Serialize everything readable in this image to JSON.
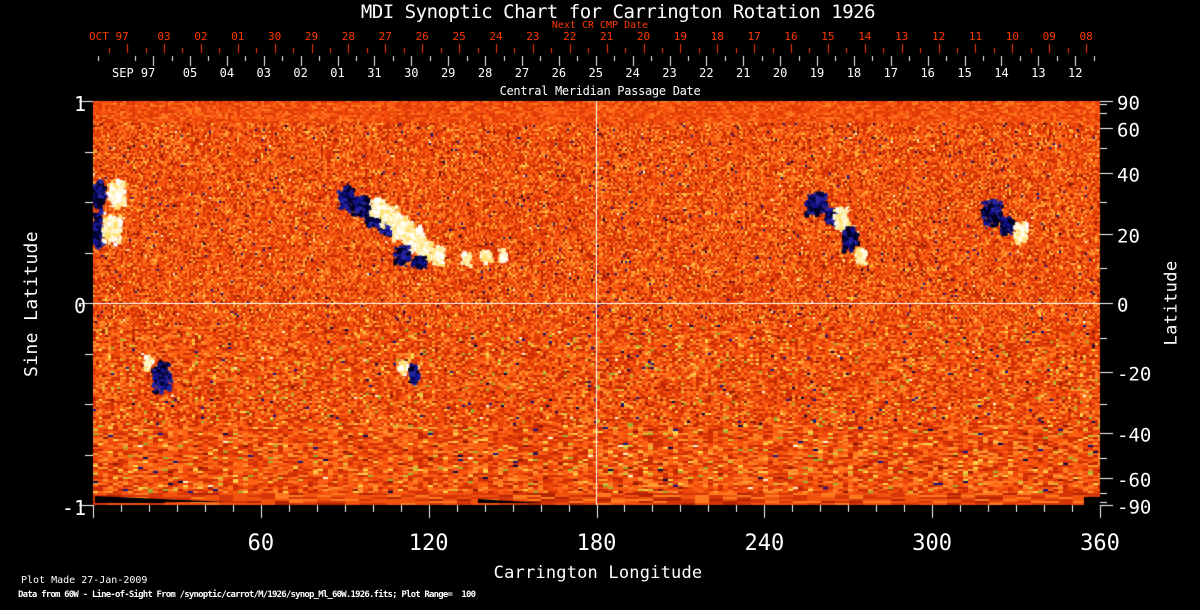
{
  "title": "MDI Synoptic Chart for Carrington Rotation 1926",
  "top_axis": {
    "month_label": "OCT 97",
    "axis_label": "Next CR CMP Date",
    "dates": [
      "03",
      "02",
      "01",
      "30",
      "29",
      "28",
      "27",
      "26",
      "25",
      "24",
      "23",
      "22",
      "21",
      "20",
      "19",
      "18",
      "17",
      "16",
      "15",
      "14",
      "13",
      "12",
      "11",
      "10",
      "09",
      "08"
    ]
  },
  "cmp_axis": {
    "month_label": "SEP 97",
    "axis_label": "Central Meridian Passage Date",
    "dates": [
      "05",
      "04",
      "03",
      "02",
      "01",
      "31",
      "30",
      "29",
      "28",
      "27",
      "26",
      "25",
      "24",
      "23",
      "22",
      "21",
      "20",
      "19",
      "18",
      "17",
      "16",
      "15",
      "14",
      "13",
      "12"
    ]
  },
  "left_axis": {
    "label": "Sine Latitude",
    "ticks": [
      "1",
      "0",
      "-1"
    ],
    "tick_values": [
      1,
      0,
      -1
    ]
  },
  "right_axis": {
    "label": "Latitude",
    "ticks": [
      "90",
      "60",
      "40",
      "20",
      "0",
      "-20",
      "-40",
      "-60",
      "-90"
    ],
    "tick_values": [
      90,
      60,
      40,
      20,
      0,
      -20,
      -40,
      -60,
      -90
    ]
  },
  "bottom_axis": {
    "label": "Carrington Longitude",
    "ticks": [
      "60",
      "120",
      "180",
      "240",
      "300",
      "360"
    ],
    "tick_values": [
      60,
      120,
      180,
      240,
      300,
      360
    ]
  },
  "footer": {
    "line1": "Plot Made 27-Jan-2009",
    "line2": "Data from 60W - Line-of-Sight From /synoptic/carrot/M/1926/synop_Ml_60W.1926.fits; Plot Range=  100"
  },
  "colors": {
    "background": "#000000",
    "axis_red": "#ff3a00",
    "axis_white": "#ffffff",
    "map_base_orange": "#f05010",
    "negative_polarity_navy": "#10107e",
    "positive_polarity_white": "#ffffff"
  },
  "chart_data": {
    "type": "heatmap",
    "title": "MDI Synoptic Chart for Carrington Rotation 1926",
    "carrington_rotation": 1926,
    "xlabel": "Carrington Longitude",
    "ylabel_left": "Sine Latitude",
    "ylabel_right": "Latitude",
    "xlim": [
      0,
      360
    ],
    "ylim_sine_latitude": [
      -1,
      1
    ],
    "x_ticks": [
      60,
      120,
      180,
      240,
      300,
      360
    ],
    "left_ticks_sine": [
      1,
      0,
      -1
    ],
    "right_ticks_latitude": [
      90,
      60,
      40,
      20,
      0,
      -20,
      -40,
      -60,
      -90
    ],
    "plot_range_gauss": 100,
    "colormap_description": "speckled orange-red background = weak field; white/yellow clusters = positive polarity; dark blue/black clusters = negative polarity",
    "grid": {
      "vertical_line_longitude": 180,
      "horizontal_line_sine_latitude": 0
    },
    "active_regions": [
      {
        "lon": 1.5,
        "lat": 33,
        "polarity": "negative",
        "rlon": 2.5,
        "rlat": 5
      },
      {
        "lon": 8,
        "lat": 33,
        "polarity": "positive",
        "rlon": 3.5,
        "rlat": 5
      },
      {
        "lon": 1,
        "lat": 22,
        "polarity": "negative",
        "rlon": 2,
        "rlat": 6
      },
      {
        "lon": 6,
        "lat": 22,
        "polarity": "positive",
        "rlon": 3.5,
        "rlat": 5
      },
      {
        "lon": 90,
        "lat": 32,
        "polarity": "negative",
        "rlon": 3,
        "rlat": 4
      },
      {
        "lon": 95,
        "lat": 29,
        "polarity": "negative",
        "rlon": 4,
        "rlat": 4
      },
      {
        "lon": 100,
        "lat": 26,
        "polarity": "negative",
        "rlon": 4,
        "rlat": 4
      },
      {
        "lon": 104,
        "lat": 23,
        "polarity": "negative",
        "rlon": 3,
        "rlat": 3
      },
      {
        "lon": 101,
        "lat": 29,
        "polarity": "positive",
        "rlon": 3,
        "rlat": 3
      },
      {
        "lon": 106,
        "lat": 26,
        "polarity": "positive",
        "rlon": 4,
        "rlat": 4
      },
      {
        "lon": 110,
        "lat": 22,
        "polarity": "positive",
        "rlon": 4,
        "rlat": 4
      },
      {
        "lon": 114,
        "lat": 19,
        "polarity": "positive",
        "rlon": 4,
        "rlat": 4
      },
      {
        "lon": 118,
        "lat": 16,
        "polarity": "positive",
        "rlon": 3,
        "rlat": 3
      },
      {
        "lon": 110,
        "lat": 14,
        "polarity": "negative",
        "rlon": 3,
        "rlat": 3
      },
      {
        "lon": 116,
        "lat": 12,
        "polarity": "negative",
        "rlon": 3,
        "rlat": 2
      },
      {
        "lon": 123,
        "lat": 14,
        "polarity": "positive",
        "rlon": 2.5,
        "rlat": 3
      },
      {
        "lon": 133,
        "lat": 13,
        "polarity": "positive",
        "rlon": 2,
        "rlat": 2
      },
      {
        "lon": 140,
        "lat": 14,
        "polarity": "positive",
        "rlon": 2,
        "rlat": 2
      },
      {
        "lon": 146,
        "lat": 14,
        "polarity": "positive",
        "rlon": 1.5,
        "rlat": 2
      },
      {
        "lon": 258,
        "lat": 30,
        "polarity": "negative",
        "rlon": 4,
        "rlat": 4
      },
      {
        "lon": 264,
        "lat": 26,
        "polarity": "negative",
        "rlon": 3,
        "rlat": 3
      },
      {
        "lon": 267,
        "lat": 25,
        "polarity": "positive",
        "rlon": 3,
        "rlat": 4
      },
      {
        "lon": 270,
        "lat": 19,
        "polarity": "negative",
        "rlon": 3,
        "rlat": 4
      },
      {
        "lon": 274,
        "lat": 14,
        "polarity": "positive",
        "rlon": 2,
        "rlat": 2.5
      },
      {
        "lon": 321,
        "lat": 27,
        "polarity": "negative",
        "rlon": 4,
        "rlat": 4
      },
      {
        "lon": 326,
        "lat": 23,
        "polarity": "negative",
        "rlon": 3,
        "rlat": 3
      },
      {
        "lon": 331,
        "lat": 21,
        "polarity": "positive",
        "rlon": 2.5,
        "rlat": 3.5
      },
      {
        "lon": 19,
        "lat": -17,
        "polarity": "positive",
        "rlon": 1.5,
        "rlat": 2.5
      },
      {
        "lon": 24,
        "lat": -21,
        "polarity": "negative",
        "rlon": 3.5,
        "rlat": 5
      },
      {
        "lon": 110,
        "lat": -18,
        "polarity": "positive",
        "rlon": 1.5,
        "rlat": 2.5
      },
      {
        "lon": 114,
        "lat": -20,
        "polarity": "negative",
        "rlon": 2,
        "rlat": 3
      }
    ],
    "south_edge_data_gaps_lon": [
      [
        1,
        45
      ],
      [
        138,
        158
      ],
      [
        352,
        360
      ]
    ]
  }
}
